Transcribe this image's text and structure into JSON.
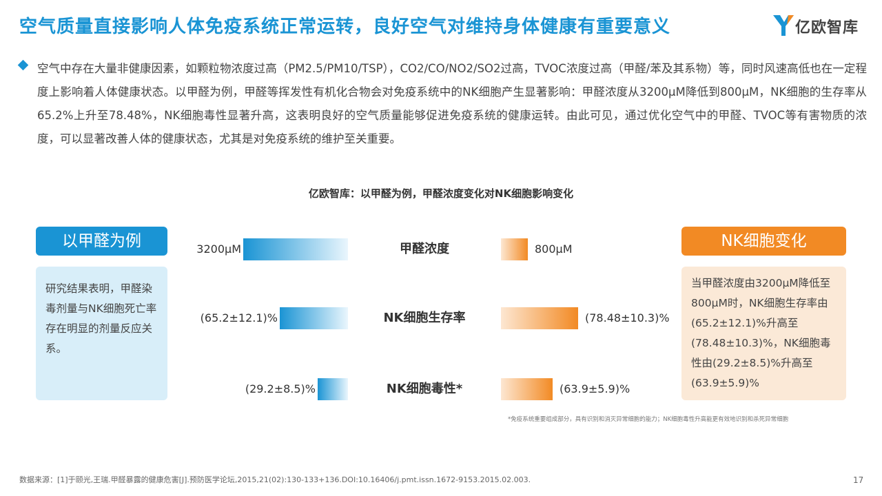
{
  "header": {
    "title": "空气质量直接影响人体免疫系统正常运转，良好空气对维持身体健康有重要意义",
    "logo_text": "亿欧智库"
  },
  "intro": {
    "text": "空气中存在大量非健康因素，如颗粒物浓度过高（PM2.5/PM10/TSP），CO2/CO/NO2/SO2过高，TVOC浓度过高（甲醛/苯及其系物）等，同时风速高低也在一定程度上影响着人体健康状态。以甲醛为例，甲醛等挥发性有机化合物会对免疫系统中的NK细胞产生显著影响：甲醛浓度从3200μM降低到800μM，NK细胞的生存率从65.2%上升至78.48%，NK细胞毒性显著升高，这表明良好的空气质量能够促进免疫系统的健康运转。由此可见，通过优化空气中的甲醛、TVOC等有害物质的浓度，可以显著改善人体的健康状态，尤其是对免疫系统的维护至关重要。"
  },
  "left_panel": {
    "pill": "以甲醛为例",
    "text": "研究结果表明，甲醛染毒剂量与NK细胞死亡率存在明显的剂量反应关系。"
  },
  "right_panel": {
    "pill": "NK细胞变化",
    "text": "当甲醛浓度由3200μM降低至800μM时，NK细胞生存率由(65.2±12.1)%升高至(78.48±10.3)%，NK细胞毒性由(29.2±8.5)%升高至(63.9±5.9)%"
  },
  "chart_data": {
    "type": "bar",
    "title": "亿欧智库：以甲醛为例，甲醛浓度变化对NK细胞影响变化",
    "categories": [
      "甲醛浓度",
      "NK细胞生存率",
      "NK细胞毒性*"
    ],
    "series": [
      {
        "values": [
          3200,
          65.2,
          29.2
        ],
        "labels": [
          "3200μM",
          "(65.2±12.1)%",
          "(29.2±8.5)%"
        ],
        "color": "#1a94d4"
      },
      {
        "values": [
          800,
          78.48,
          63.9
        ],
        "labels": [
          "800μM",
          "(78.48±10.3)%",
          "(63.9±5.9)%"
        ],
        "color": "#f28a24"
      }
    ]
  },
  "footnote": "*免疫系统重要组成部分，具有识别和消灭异常细胞的能力；NK细胞毒性升高能更有效地识别和杀死异常细胞",
  "source": "数据来源：[1]于颐光,王瑞.甲醛暴露的健康危害[J].预防医学论坛,2015,21(02):130-133+136.DOI:10.16406/j.pmt.issn.1672-9153.2015.02.003.",
  "page_number": "17",
  "colors": {
    "accent_blue": "#1a94d4",
    "accent_orange": "#f28a24"
  }
}
